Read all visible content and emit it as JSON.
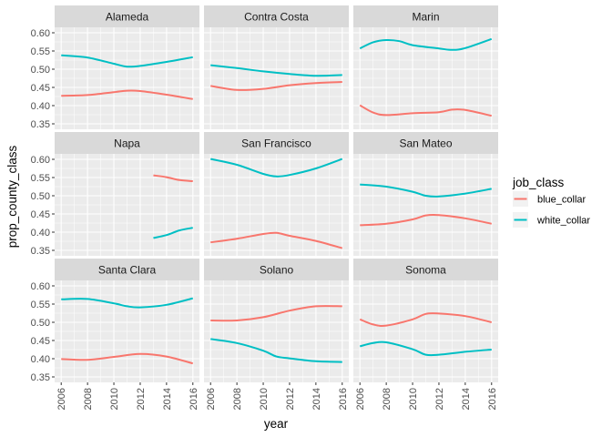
{
  "chart_data": {
    "type": "line",
    "facet_layout": "3x3 grid",
    "xlabel": "year",
    "ylabel": "prop_county_class",
    "xlim": [
      2005.5,
      2016.5
    ],
    "ylim": [
      0.335,
      0.615
    ],
    "x_ticks": [
      2006,
      2008,
      2010,
      2012,
      2014,
      2016
    ],
    "x_tick_labels": [
      "2006",
      "2008",
      "2010",
      "2012",
      "2014",
      "2016"
    ],
    "y_ticks": [
      0.35,
      0.4,
      0.45,
      0.5,
      0.55,
      0.6
    ],
    "y_tick_labels": [
      "0.35",
      "0.40",
      "0.45",
      "0.50",
      "0.55",
      "0.60"
    ],
    "grid": true,
    "legend": {
      "title": "job_class",
      "placement": "right",
      "entries": [
        {
          "label": "blue_collar",
          "color": "#F8766D"
        },
        {
          "label": "white_collar",
          "color": "#00BFC4"
        }
      ]
    },
    "panels": [
      {
        "name": "Alameda",
        "series": [
          {
            "name": "blue_collar",
            "color": "#F8766D",
            "x": [
              2006,
              2008,
              2010,
              2011,
              2012,
              2014,
              2016
            ],
            "y": [
              0.427,
              0.429,
              0.437,
              0.441,
              0.44,
              0.43,
              0.418
            ]
          },
          {
            "name": "white_collar",
            "color": "#00BFC4",
            "x": [
              2006,
              2008,
              2010,
              2011,
              2012,
              2014,
              2016
            ],
            "y": [
              0.538,
              0.532,
              0.515,
              0.507,
              0.509,
              0.52,
              0.533
            ]
          }
        ]
      },
      {
        "name": "Contra Costa",
        "series": [
          {
            "name": "blue_collar",
            "color": "#F8766D",
            "x": [
              2006,
              2008,
              2010,
              2012,
              2014,
              2016
            ],
            "y": [
              0.454,
              0.443,
              0.446,
              0.456,
              0.462,
              0.465
            ]
          },
          {
            "name": "white_collar",
            "color": "#00BFC4",
            "x": [
              2006,
              2008,
              2010,
              2012,
              2014,
              2016
            ],
            "y": [
              0.511,
              0.503,
              0.494,
              0.487,
              0.482,
              0.484
            ]
          }
        ]
      },
      {
        "name": "Marin",
        "series": [
          {
            "name": "blue_collar",
            "color": "#F8766D",
            "x": [
              2006,
              2007,
              2008,
              2010,
              2012,
              2013,
              2014,
              2016
            ],
            "y": [
              0.401,
              0.381,
              0.374,
              0.379,
              0.382,
              0.389,
              0.388,
              0.372
            ]
          },
          {
            "name": "white_collar",
            "color": "#00BFC4",
            "x": [
              2006,
              2007,
              2008,
              2009,
              2010,
              2012,
              2013,
              2014,
              2016
            ],
            "y": [
              0.557,
              0.574,
              0.58,
              0.577,
              0.566,
              0.557,
              0.553,
              0.558,
              0.583
            ]
          }
        ]
      },
      {
        "name": "Napa",
        "series": [
          {
            "name": "blue_collar",
            "color": "#F8766D",
            "x": [
              2013,
              2014,
              2015,
              2016
            ],
            "y": [
              0.556,
              0.551,
              0.543,
              0.54
            ]
          },
          {
            "name": "white_collar",
            "color": "#00BFC4",
            "x": [
              2013,
              2014,
              2015,
              2016
            ],
            "y": [
              0.384,
              0.392,
              0.405,
              0.412
            ]
          }
        ]
      },
      {
        "name": "San Francisco",
        "series": [
          {
            "name": "blue_collar",
            "color": "#F8766D",
            "x": [
              2006,
              2008,
              2010,
              2011,
              2012,
              2014,
              2016
            ],
            "y": [
              0.372,
              0.382,
              0.395,
              0.398,
              0.39,
              0.376,
              0.356
            ]
          },
          {
            "name": "white_collar",
            "color": "#00BFC4",
            "x": [
              2006,
              2008,
              2010,
              2011,
              2012,
              2014,
              2016
            ],
            "y": [
              0.601,
              0.585,
              0.56,
              0.553,
              0.557,
              0.575,
              0.601
            ]
          }
        ]
      },
      {
        "name": "San Mateo",
        "series": [
          {
            "name": "blue_collar",
            "color": "#F8766D",
            "x": [
              2006,
              2008,
              2010,
              2011,
              2012,
              2014,
              2016
            ],
            "y": [
              0.419,
              0.423,
              0.435,
              0.446,
              0.447,
              0.438,
              0.423
            ]
          },
          {
            "name": "white_collar",
            "color": "#00BFC4",
            "x": [
              2006,
              2008,
              2010,
              2011,
              2012,
              2014,
              2016
            ],
            "y": [
              0.531,
              0.525,
              0.511,
              0.5,
              0.498,
              0.506,
              0.519
            ]
          }
        ]
      },
      {
        "name": "Santa Clara",
        "series": [
          {
            "name": "blue_collar",
            "color": "#F8766D",
            "x": [
              2006,
              2008,
              2010,
              2012,
              2014,
              2016
            ],
            "y": [
              0.399,
              0.397,
              0.405,
              0.413,
              0.406,
              0.387
            ]
          },
          {
            "name": "white_collar",
            "color": "#00BFC4",
            "x": [
              2006,
              2008,
              2010,
              2011,
              2012,
              2014,
              2016
            ],
            "y": [
              0.563,
              0.564,
              0.552,
              0.544,
              0.541,
              0.548,
              0.566
            ]
          }
        ]
      },
      {
        "name": "Solano",
        "series": [
          {
            "name": "blue_collar",
            "color": "#F8766D",
            "x": [
              2006,
              2008,
              2010,
              2012,
              2014,
              2016
            ],
            "y": [
              0.505,
              0.505,
              0.514,
              0.532,
              0.544,
              0.544
            ]
          },
          {
            "name": "white_collar",
            "color": "#00BFC4",
            "x": [
              2006,
              2008,
              2010,
              2011,
              2012,
              2014,
              2016
            ],
            "y": [
              0.454,
              0.443,
              0.422,
              0.406,
              0.401,
              0.393,
              0.391
            ]
          }
        ]
      },
      {
        "name": "Sonoma",
        "series": [
          {
            "name": "blue_collar",
            "color": "#F8766D",
            "x": [
              2006,
              2007,
              2008,
              2010,
              2011,
              2012,
              2014,
              2016
            ],
            "y": [
              0.508,
              0.494,
              0.491,
              0.508,
              0.523,
              0.524,
              0.517,
              0.5
            ]
          },
          {
            "name": "white_collar",
            "color": "#00BFC4",
            "x": [
              2006,
              2007,
              2008,
              2010,
              2011,
              2012,
              2014,
              2016
            ],
            "y": [
              0.434,
              0.443,
              0.445,
              0.426,
              0.411,
              0.411,
              0.419,
              0.425
            ]
          }
        ]
      }
    ]
  }
}
